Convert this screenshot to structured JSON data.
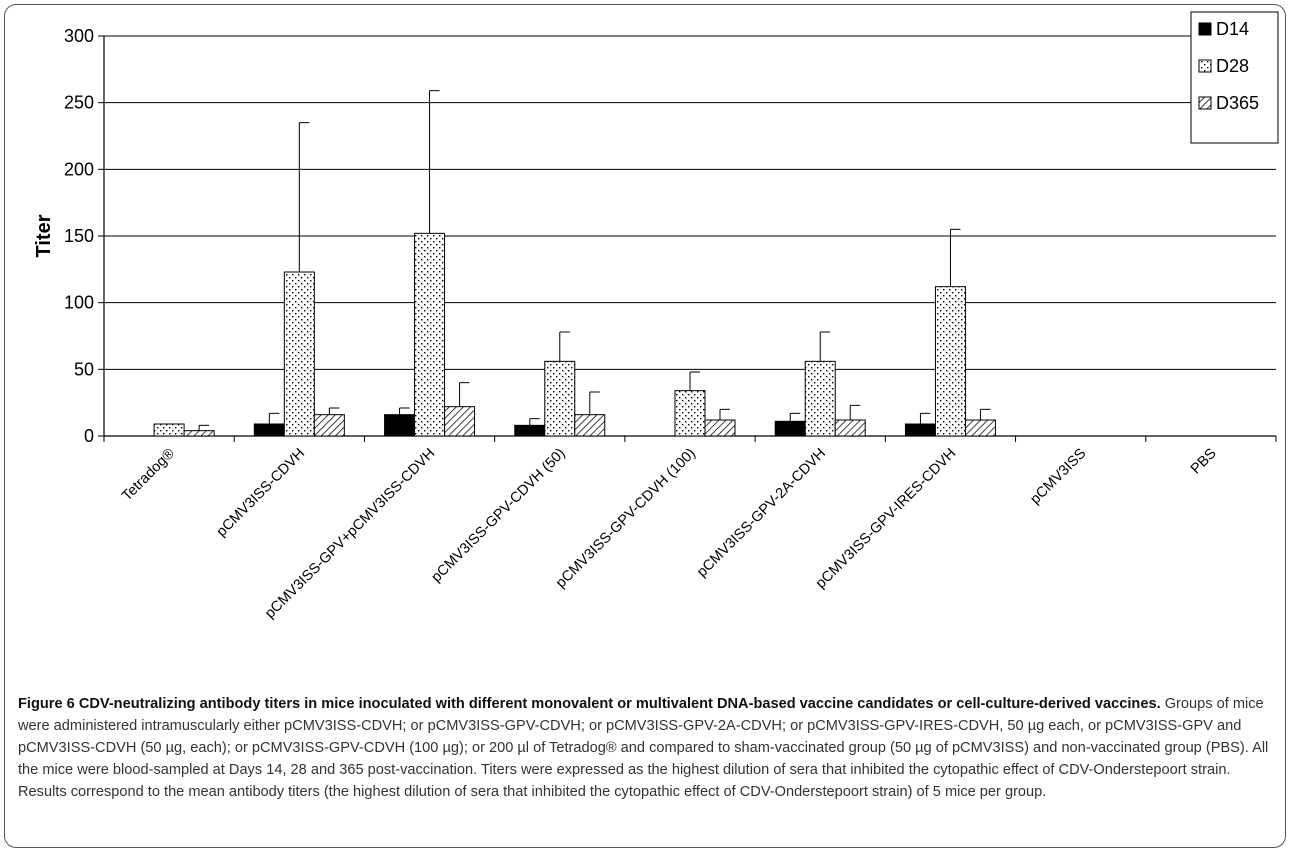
{
  "chart_data": {
    "type": "bar",
    "xlabel": "",
    "ylabel": "Titer",
    "ylim": [
      0,
      300
    ],
    "yticks": [
      "0",
      "50",
      "100",
      "150",
      "200",
      "250",
      "300"
    ],
    "grid": true,
    "legend_position": "top-right",
    "categories": [
      "Tetradog®",
      "pCMV3ISS-CDVH",
      "pCMV3ISS-GPV+pCMV3ISS-CDVH",
      "pCMV3ISS-GPV-CDVH (50)",
      "pCMV3ISS-GPV-CDVH (100)",
      "pCMV3ISS-GPV-2A-CDVH",
      "pCMV3ISS-GPV-IRES-CDVH",
      "pCMV3ISS",
      "PBS"
    ],
    "series": [
      {
        "name": "D14",
        "pattern": "solid",
        "values": [
          0,
          9,
          16,
          8,
          0,
          11,
          9,
          0,
          0
        ],
        "errors": [
          0,
          8,
          5,
          5,
          0,
          6,
          8,
          0,
          0
        ]
      },
      {
        "name": "D28",
        "pattern": "dotted",
        "values": [
          9,
          123,
          152,
          56,
          34,
          56,
          112,
          0,
          0
        ],
        "errors": [
          0,
          112,
          107,
          22,
          14,
          22,
          43,
          0,
          0
        ]
      },
      {
        "name": "D365",
        "pattern": "hatched",
        "values": [
          4,
          16,
          22,
          16,
          12,
          12,
          12,
          0,
          0
        ],
        "errors": [
          4,
          5,
          18,
          17,
          8,
          11,
          8,
          0,
          0
        ]
      }
    ]
  },
  "caption": {
    "title": "Figure 6 CDV-neutralizing antibody titers in mice inoculated with different monovalent or multivalent DNA-based vaccine candidates or cell-culture-derived vaccines.",
    "body": "Groups of mice were administered intramuscularly either pCMV3ISS-CDVH; or pCMV3ISS-GPV-CDVH; or pCMV3ISS-GPV-2A-CDVH; or pCMV3ISS-GPV-IRES-CDVH, 50 µg each, or pCMV3ISS-GPV and pCMV3ISS-CDVH (50 µg, each); or pCMV3ISS-GPV-CDVH (100 µg); or 200 µl of Tetradog® and compared to sham-vaccinated group (50 µg of pCMV3ISS) and non-vaccinated group (PBS). All the mice were blood-sampled at Days 14, 28 and 365 post-vaccination. Titers were expressed as the highest dilution of sera that inhibited the cytopathic effect of CDV-Onderstepoort strain. Results correspond to the mean antibody titers (the highest dilution of sera that inhibited the cytopathic effect of CDV-Onderstepoort strain) of 5 mice per group."
  }
}
